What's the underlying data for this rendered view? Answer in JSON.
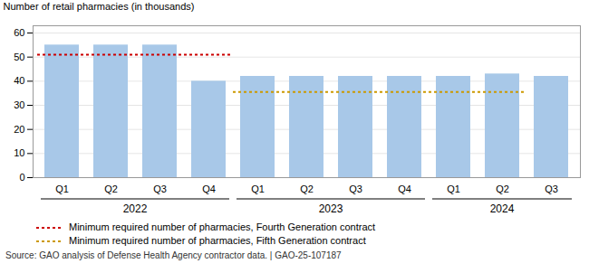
{
  "chart_data": {
    "type": "bar",
    "ylabel": "Number of retail pharmacies (in thousands)",
    "categories": [
      "Q1",
      "Q2",
      "Q3",
      "Q4",
      "Q1",
      "Q2",
      "Q3",
      "Q4",
      "Q1",
      "Q2",
      "Q3"
    ],
    "values": [
      55,
      55,
      55,
      40,
      42,
      42,
      42,
      42,
      42,
      43,
      42
    ],
    "color": "#a8c8e8",
    "series": [
      {
        "name": "Minimum required number of pharmacies, Fourth Generation contract",
        "type": "line",
        "line_style": "dotted",
        "color": "#cc0000",
        "values": [
          51,
          51,
          51,
          51,
          null,
          null,
          null,
          null,
          null,
          null,
          null
        ]
      },
      {
        "name": "Minimum required number of pharmacies, Fifth Generation contract",
        "type": "line",
        "line_style": "dotted",
        "color": "#cc9900",
        "values": [
          null,
          null,
          null,
          null,
          35.5,
          35.5,
          35.5,
          35.5,
          35.5,
          35.5,
          null
        ]
      }
    ],
    "year_groups": [
      {
        "label": "2022",
        "first": 0,
        "last": 3
      },
      {
        "label": "2023",
        "first": 4,
        "last": 7
      },
      {
        "label": "2024",
        "first": 8,
        "last": 10
      }
    ],
    "ylim": [
      0,
      63
    ],
    "yticks": [
      0,
      10,
      20,
      30,
      40,
      50,
      60
    ],
    "grid": true,
    "legend": "bottom",
    "source": "Source: GAO analysis of Defense Health Agency contractor data.  |  GAO-25-107187"
  }
}
